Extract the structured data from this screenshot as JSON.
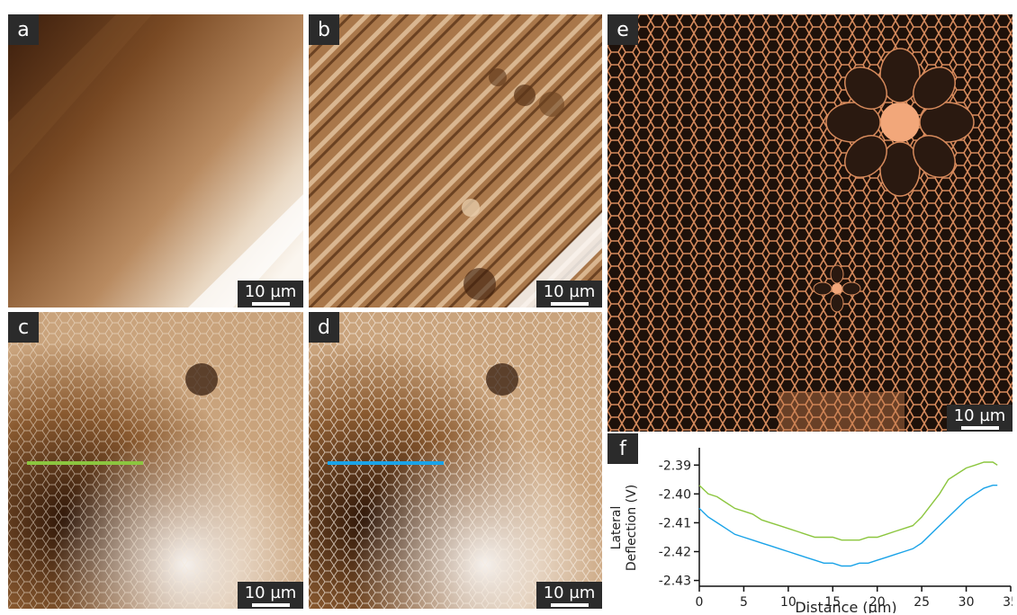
{
  "panels": {
    "a": {
      "label": "a",
      "scale": "10 µm"
    },
    "b": {
      "label": "b",
      "scale": "10 µm"
    },
    "c": {
      "label": "c",
      "scale": "10 µm"
    },
    "d": {
      "label": "d",
      "scale": "10 µm"
    },
    "e": {
      "label": "e",
      "scale": "10 µm"
    },
    "f": {
      "label": "f"
    }
  },
  "colors": {
    "green": "#8cc63f",
    "blue": "#1aa3e8",
    "label_bg": "#2b2b2b"
  },
  "chart_data": {
    "type": "line",
    "xlabel": "Distance (µm)",
    "ylabel_lines": [
      "Lateral",
      "Deflection (V)"
    ],
    "xlim": [
      0,
      35
    ],
    "ylim": [
      -2.432,
      -2.384
    ],
    "xticks": [
      0,
      5,
      10,
      15,
      20,
      25,
      30,
      35
    ],
    "xtick_labels": [
      "0",
      "5",
      "10",
      "15",
      "20",
      "25",
      "30",
      "35"
    ],
    "yticks": [
      -2.39,
      -2.4,
      -2.41,
      -2.42,
      -2.43
    ],
    "ytick_labels": [
      "-2.39",
      "-2.40",
      "-2.41",
      "-2.42",
      "-2.43"
    ],
    "series": [
      {
        "color": "#8cc63f",
        "x": [
          0,
          1,
          2,
          3,
          4,
          5,
          6,
          7,
          8,
          9,
          10,
          11,
          12,
          13,
          14,
          15,
          16,
          17,
          18,
          19,
          20,
          21,
          22,
          23,
          24,
          25,
          26,
          27,
          28,
          29,
          30,
          31,
          32,
          33,
          33.5
        ],
        "y": [
          -2.397,
          -2.4,
          -2.401,
          -2.403,
          -2.405,
          -2.406,
          -2.407,
          -2.409,
          -2.41,
          -2.411,
          -2.412,
          -2.413,
          -2.414,
          -2.415,
          -2.415,
          -2.415,
          -2.416,
          -2.416,
          -2.416,
          -2.415,
          -2.415,
          -2.414,
          -2.413,
          -2.412,
          -2.411,
          -2.408,
          -2.404,
          -2.4,
          -2.395,
          -2.393,
          -2.391,
          -2.39,
          -2.389,
          -2.389,
          -2.39
        ]
      },
      {
        "color": "#1aa3e8",
        "x": [
          0,
          1,
          2,
          3,
          4,
          5,
          6,
          7,
          8,
          9,
          10,
          11,
          12,
          13,
          14,
          15,
          16,
          17,
          18,
          19,
          20,
          21,
          22,
          23,
          24,
          25,
          26,
          27,
          28,
          29,
          30,
          31,
          32,
          33,
          33.5
        ],
        "y": [
          -2.405,
          -2.408,
          -2.41,
          -2.412,
          -2.414,
          -2.415,
          -2.416,
          -2.417,
          -2.418,
          -2.419,
          -2.42,
          -2.421,
          -2.422,
          -2.423,
          -2.424,
          -2.424,
          -2.425,
          -2.425,
          -2.424,
          -2.424,
          -2.423,
          -2.422,
          -2.421,
          -2.42,
          -2.419,
          -2.417,
          -2.414,
          -2.411,
          -2.408,
          -2.405,
          -2.402,
          -2.4,
          -2.398,
          -2.397,
          -2.397
        ]
      }
    ]
  }
}
